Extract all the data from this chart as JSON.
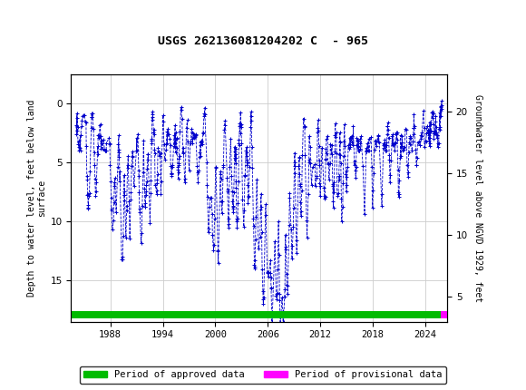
{
  "title": "USGS 262136081204202 C  - 965",
  "ylabel_left": "Depth to water level, feet below land\nsurface",
  "ylabel_right": "Groundwater level above NGVD 1929, feet",
  "ylim_left": [
    18.5,
    -2.5
  ],
  "ylim_right": [
    3,
    23
  ],
  "yticks_left": [
    0,
    5,
    10,
    15
  ],
  "yticks_right": [
    5,
    10,
    15,
    20
  ],
  "xmin": 1983.5,
  "xmax": 2026.5,
  "xticks": [
    1988,
    1994,
    2000,
    2006,
    2012,
    2018,
    2024
  ],
  "header_color": "#1a6b3c",
  "data_color": "#0000cc",
  "approved_color": "#00bb00",
  "provisional_color": "#ff00ff",
  "legend_approved": "Period of approved data",
  "legend_provisional": "Period of provisional data",
  "approved_bar_xstart": 1983.5,
  "approved_bar_xend": 2025.8,
  "provisional_bar_xstart": 2025.8,
  "provisional_bar_xend": 2026.5,
  "bar_y": 17.9,
  "bar_height": 0.6,
  "bg_color": "#ffffff",
  "grid_color": "#cccccc"
}
